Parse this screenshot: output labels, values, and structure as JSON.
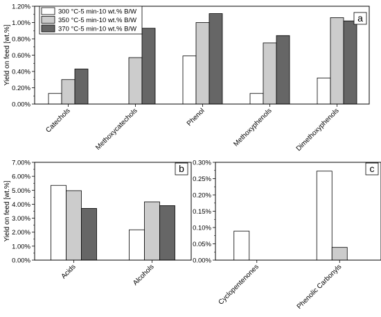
{
  "chart_data": [
    {
      "panel": "a",
      "type": "bar",
      "title": "",
      "ylabel": "Yield on feed [wt.%]",
      "xlabel": "",
      "categories": [
        "Catechols",
        "Methoxycatechols",
        "Phenol",
        "Methoxyphenols",
        "Dimethoxyphenols"
      ],
      "ylim": [
        0,
        1.2
      ],
      "yticks": [
        "0.00%",
        "0.20%",
        "0.40%",
        "0.60%",
        "0.80%",
        "1.00%",
        "1.20%"
      ],
      "series": [
        {
          "name": "300 °C-5 min-10 wt.% B/W",
          "color": "#ffffff",
          "values": [
            0.13,
            0,
            0.59,
            0.13,
            0.32
          ]
        },
        {
          "name": "350 °C-5 min-10 wt.% B/W",
          "color": "#cccccc",
          "values": [
            0.3,
            0.57,
            1.0,
            0.75,
            1.06
          ]
        },
        {
          "name": "370 °C-5 min-10 wt.% B/W",
          "color": "#666666",
          "values": [
            0.43,
            0.93,
            1.11,
            0.84,
            1.02
          ]
        }
      ],
      "legend": "top-left",
      "grid": false
    },
    {
      "panel": "b",
      "type": "bar",
      "title": "",
      "ylabel": "Yield on feed [wt.%]",
      "xlabel": "",
      "categories": [
        "Acids",
        "Alcohols"
      ],
      "ylim": [
        0,
        7
      ],
      "yticks": [
        "0.00%",
        "1.00%",
        "2.00%",
        "3.00%",
        "4.00%",
        "5.00%",
        "6.00%",
        "7.00%"
      ],
      "series": [
        {
          "name": "300 °C-5 min-10 wt.% B/W",
          "color": "#ffffff",
          "values": [
            5.35,
            2.17
          ]
        },
        {
          "name": "350 °C-5 min-10 wt.% B/W",
          "color": "#cccccc",
          "values": [
            4.97,
            4.17
          ]
        },
        {
          "name": "370 °C-5 min-10 wt.% B/W",
          "color": "#666666",
          "values": [
            3.7,
            3.9
          ]
        }
      ],
      "grid": false
    },
    {
      "panel": "c",
      "type": "bar",
      "title": "",
      "ylabel": "",
      "xlabel": "",
      "categories": [
        "Cyclopentenones",
        "Phenolic Carbonyls"
      ],
      "ylim": [
        0,
        0.3
      ],
      "yticks": [
        "0.00%",
        "0.05%",
        "0.10%",
        "0.15%",
        "0.20%",
        "0.25%",
        "0.30%"
      ],
      "series": [
        {
          "name": "300 °C-5 min-10 wt.% B/W",
          "color": "#ffffff",
          "values": [
            0.089,
            0.273
          ]
        },
        {
          "name": "350 °C-5 min-10 wt.% B/W",
          "color": "#cccccc",
          "values": [
            0,
            0.039
          ]
        },
        {
          "name": "370 °C-5 min-10 wt.% B/W",
          "color": "#666666",
          "values": [
            0,
            0
          ]
        }
      ],
      "grid": false
    }
  ]
}
